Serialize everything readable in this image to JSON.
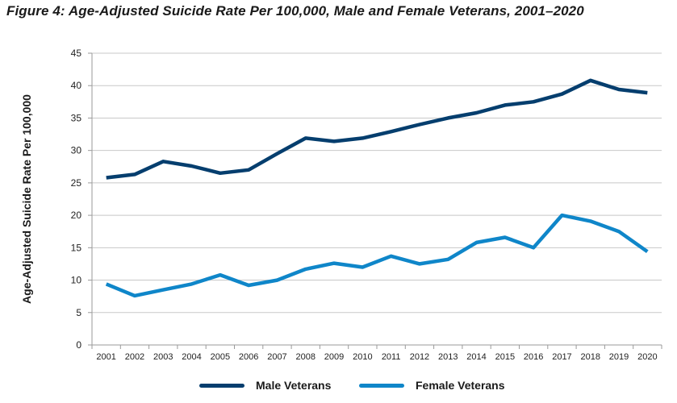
{
  "title": "Figure 4: Age-Adjusted Suicide Rate Per 100,000, Male and Female Veterans, 2001–2020",
  "chart_data": {
    "type": "line",
    "title": "Figure 4: Age-Adjusted Suicide Rate Per 100,000, Male and Female Veterans, 2001–2020",
    "xlabel": "",
    "ylabel": "Age-Adjusted Suicide Rate Per 100,000",
    "x": [
      "2001",
      "2002",
      "2003",
      "2004",
      "2005",
      "2006",
      "2007",
      "2008",
      "2009",
      "2010",
      "2011",
      "2012",
      "2013",
      "2014",
      "2015",
      "2016",
      "2017",
      "2018",
      "2019",
      "2020"
    ],
    "ylim": [
      0,
      45
    ],
    "yticks": [
      0,
      5,
      10,
      15,
      20,
      25,
      30,
      35,
      40,
      45
    ],
    "grid": true,
    "legend_position": "bottom",
    "series": [
      {
        "name": "Male Veterans",
        "color": "#053e6e",
        "values": [
          25.8,
          26.3,
          28.3,
          27.6,
          26.5,
          27.0,
          29.5,
          31.9,
          31.4,
          31.9,
          32.9,
          34.0,
          35.0,
          35.8,
          37.0,
          37.5,
          38.7,
          40.8,
          39.4,
          38.9
        ]
      },
      {
        "name": "Female Veterans",
        "color": "#0f86c9",
        "values": [
          9.4,
          7.6,
          8.5,
          9.4,
          10.8,
          9.2,
          10.0,
          11.7,
          12.6,
          12.0,
          13.7,
          12.5,
          13.2,
          15.8,
          16.6,
          15.0,
          20.0,
          19.1,
          17.5,
          14.4
        ]
      }
    ]
  }
}
